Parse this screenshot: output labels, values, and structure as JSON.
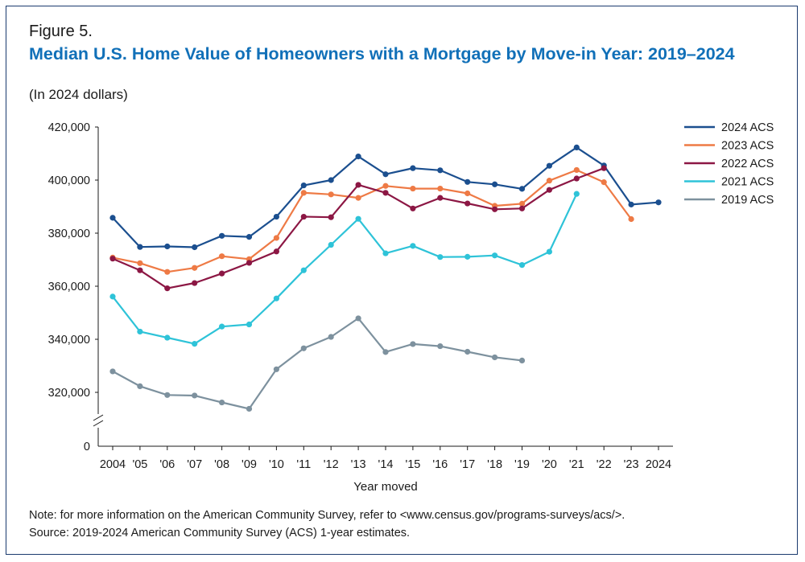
{
  "figure_label": "Figure 5.",
  "note": "Note: for more information on the American Community Survey, refer to <www.census.gov/programs-surveys/acs/>.",
  "source": "Source: 2019-2024 American Community Survey (ACS) 1-year estimates.",
  "chart_data": {
    "type": "line",
    "title": "Median U.S. Home Value of Homeowners with a Mortgage by Move-in Year: 2019–2024",
    "subtitle": "(In 2024 dollars)",
    "xlabel": "Year moved",
    "ylabel": "",
    "x": [
      2004,
      2005,
      2006,
      2007,
      2008,
      2009,
      2010,
      2011,
      2012,
      2013,
      2014,
      2015,
      2016,
      2017,
      2018,
      2019,
      2020,
      2021,
      2022,
      2023,
      2024
    ],
    "x_tick_labels": [
      "2004",
      "'05",
      "'06",
      "'07",
      "'08",
      "'09",
      "'10",
      "'11",
      "'12",
      "'13",
      "'14",
      "'15",
      "'16",
      "'17",
      "'18",
      "'19",
      "'20",
      "'21",
      "'22",
      "'23",
      "2024"
    ],
    "y_ticks": [
      320000,
      340000,
      360000,
      380000,
      400000,
      420000
    ],
    "y_tick_labels": [
      "320,000",
      "340,000",
      "360,000",
      "380,000",
      "400,000",
      "420,000"
    ],
    "y_zero_label": "0",
    "y_axis_break": true,
    "ylim": [
      310000,
      420000
    ],
    "grid": false,
    "legend_position": "top-right",
    "series": [
      {
        "name": "2024 ACS",
        "color": "#1b4f8f",
        "values": [
          385800,
          374800,
          375000,
          374700,
          379000,
          378600,
          386200,
          398000,
          400000,
          408900,
          402200,
          404500,
          403700,
          399300,
          398400,
          396700,
          405400,
          412300,
          405500,
          390800,
          391600
        ]
      },
      {
        "name": "2023 ACS",
        "color": "#ee7a45",
        "values": [
          370800,
          368700,
          365400,
          366900,
          371300,
          370200,
          378200,
          395200,
          394600,
          393300,
          397800,
          396800,
          396800,
          395000,
          390300,
          391100,
          399800,
          403800,
          399200,
          385300,
          null
        ]
      },
      {
        "name": "2022 ACS",
        "color": "#8c1744",
        "values": [
          370400,
          366000,
          359200,
          361200,
          364800,
          368800,
          373100,
          386200,
          386000,
          398200,
          395200,
          389300,
          393300,
          391200,
          389000,
          389300,
          396300,
          400600,
          404500,
          null,
          null
        ]
      },
      {
        "name": "2021 ACS",
        "color": "#2ec3d8",
        "values": [
          356100,
          342900,
          340600,
          338300,
          344800,
          345600,
          355400,
          366000,
          375600,
          385400,
          372400,
          375200,
          371000,
          371100,
          371600,
          368000,
          373000,
          394800,
          null,
          null,
          null
        ]
      },
      {
        "name": "2019 ACS",
        "color": "#7d919e",
        "values": [
          327900,
          322300,
          319000,
          318800,
          316200,
          313800,
          328700,
          336600,
          340900,
          347900,
          335200,
          338200,
          337400,
          335300,
          333200,
          332000,
          null,
          null,
          null,
          null,
          null
        ]
      }
    ]
  }
}
